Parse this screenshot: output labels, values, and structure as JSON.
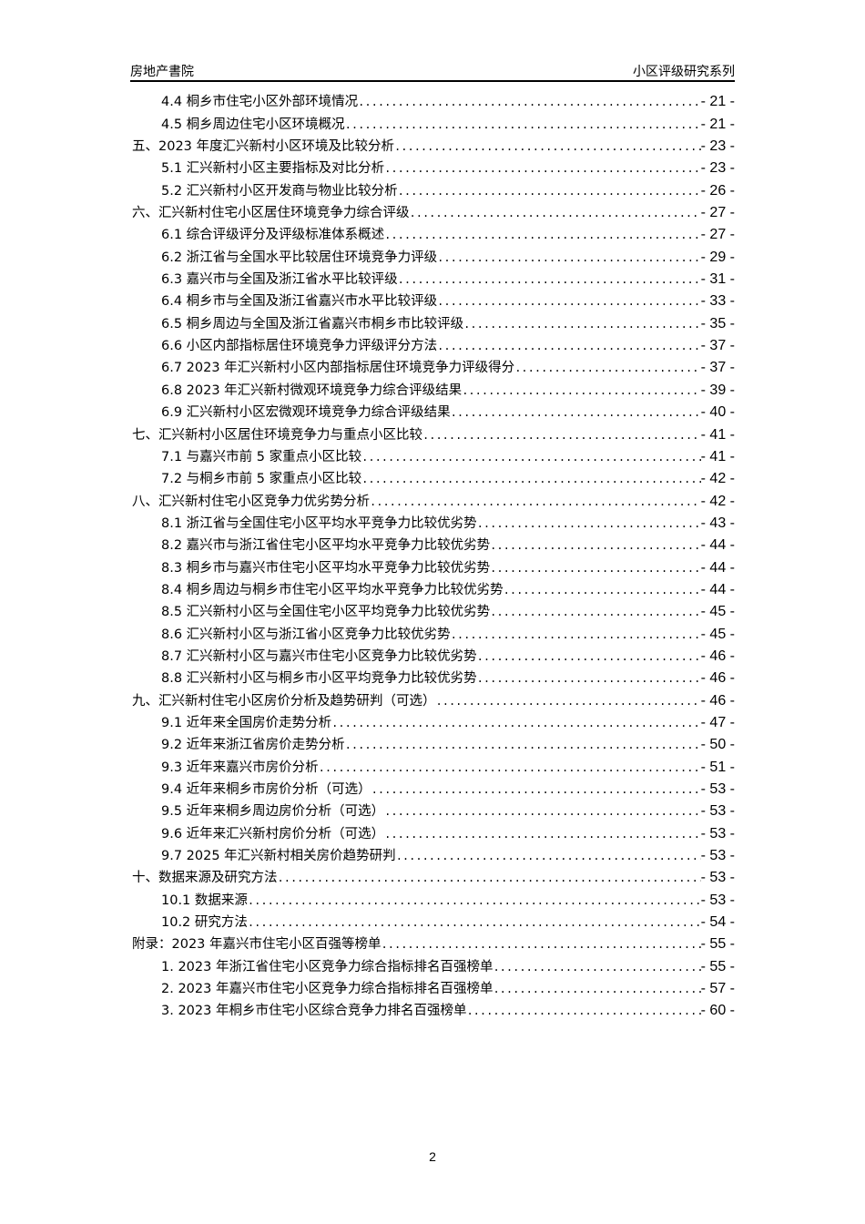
{
  "header": {
    "left": "房地产書院",
    "right": "小区评级研究系列"
  },
  "toc": [
    {
      "level": 2,
      "title": "4.4 桐乡市住宅小区外部环境情况",
      "page": "- 21 -"
    },
    {
      "level": 2,
      "title": "4.5 桐乡周边住宅小区环境概况",
      "page": "- 21 -"
    },
    {
      "level": 1,
      "title": "五、2023 年度汇兴新村小区环境及比较分析",
      "page": "- 23 -"
    },
    {
      "level": 2,
      "title": "5.1 汇兴新村小区主要指标及对比分析",
      "page": "- 23 -"
    },
    {
      "level": 2,
      "title": "5.2 汇兴新村小区开发商与物业比较分析",
      "page": "- 26 -"
    },
    {
      "level": 1,
      "title": "六、汇兴新村住宅小区居住环境竞争力综合评级",
      "page": "- 27 -"
    },
    {
      "level": 2,
      "title": "6.1 综合评级评分及评级标准体系概述",
      "page": "- 27 -"
    },
    {
      "level": 2,
      "title": "6.2 浙江省与全国水平比较居住环境竞争力评级",
      "page": "- 29 -"
    },
    {
      "level": 2,
      "title": "6.3 嘉兴市与全国及浙江省水平比较评级",
      "page": "- 31 -"
    },
    {
      "level": 2,
      "title": "6.4 桐乡市与全国及浙江省嘉兴市水平比较评级",
      "page": "- 33 -"
    },
    {
      "level": 2,
      "title": "6.5 桐乡周边与全国及浙江省嘉兴市桐乡市比较评级",
      "page": "- 35 -"
    },
    {
      "level": 2,
      "title": "6.6 小区内部指标居住环境竞争力评级评分方法",
      "page": "- 37 -"
    },
    {
      "level": 2,
      "title": "6.7 2023 年汇兴新村小区内部指标居住环境竞争力评级得分",
      "page": "- 37 -"
    },
    {
      "level": 2,
      "title": "6.8 2023 年汇兴新村微观环境竞争力综合评级结果",
      "page": "- 39 -"
    },
    {
      "level": 2,
      "title": "6.9 汇兴新村小区宏微观环境竞争力综合评级结果",
      "page": "- 40 -"
    },
    {
      "level": 1,
      "title": "七、汇兴新村小区居住环境竞争力与重点小区比较",
      "page": "- 41 -"
    },
    {
      "level": 2,
      "title": "7.1 与嘉兴市前 5 家重点小区比较",
      "page": "- 41 -"
    },
    {
      "level": 2,
      "title": "7.2 与桐乡市前 5 家重点小区比较",
      "page": "- 42 -"
    },
    {
      "level": 1,
      "title": "八、汇兴新村住宅小区竞争力优劣势分析",
      "page": "- 42 -"
    },
    {
      "level": 2,
      "title": "8.1 浙江省与全国住宅小区平均水平竞争力比较优劣势",
      "page": "- 43 -"
    },
    {
      "level": 2,
      "title": "8.2 嘉兴市与浙江省住宅小区平均水平竞争力比较优劣势",
      "page": "- 44 -"
    },
    {
      "level": 2,
      "title": "8.3 桐乡市与嘉兴市住宅小区平均水平竞争力比较优劣势",
      "page": "- 44 -"
    },
    {
      "level": 2,
      "title": "8.4 桐乡周边与桐乡市住宅小区平均水平竞争力比较优劣势",
      "page": "- 44 -"
    },
    {
      "level": 2,
      "title": "8.5 汇兴新村小区与全国住宅小区平均竞争力比较优劣势",
      "page": "- 45 -"
    },
    {
      "level": 2,
      "title": "8.6 汇兴新村小区与浙江省小区竞争力比较优劣势",
      "page": "- 45 -"
    },
    {
      "level": 2,
      "title": "8.7 汇兴新村小区与嘉兴市住宅小区竞争力比较优劣势",
      "page": "- 46 -"
    },
    {
      "level": 2,
      "title": "8.8 汇兴新村小区与桐乡市小区平均竞争力比较优劣势",
      "page": "- 46 -"
    },
    {
      "level": 1,
      "title": "九、汇兴新村住宅小区房价分析及趋势研判（可选）",
      "page": "- 46 -"
    },
    {
      "level": 2,
      "title": "9.1 近年来全国房价走势分析",
      "page": "- 47 -"
    },
    {
      "level": 2,
      "title": "9.2 近年来浙江省房价走势分析",
      "page": "- 50 -"
    },
    {
      "level": 2,
      "title": "9.3 近年来嘉兴市房价分析",
      "page": "- 51 -"
    },
    {
      "level": 2,
      "title": "9.4 近年来桐乡市房价分析（可选）",
      "page": "- 53 -"
    },
    {
      "level": 2,
      "title": "9.5 近年来桐乡周边房价分析（可选）",
      "page": "- 53 -"
    },
    {
      "level": 2,
      "title": "9.6 近年来汇兴新村房价分析（可选）",
      "page": "- 53 -"
    },
    {
      "level": 2,
      "title": "9.7 2025 年汇兴新村相关房价趋势研判",
      "page": "- 53 -"
    },
    {
      "level": 1,
      "title": "十、数据来源及研究方法",
      "page": "- 53 -"
    },
    {
      "level": 2,
      "title": "10.1 数据来源",
      "page": "- 53 -"
    },
    {
      "level": 2,
      "title": "10.2 研究方法",
      "page": "- 54 -"
    },
    {
      "level": 1,
      "title": "附录：2023 年嘉兴市住宅小区百强等榜单",
      "page": "- 55 -"
    },
    {
      "level": 2,
      "title": "1. 2023 年浙江省住宅小区竞争力综合指标排名百强榜单",
      "page": "- 55 -"
    },
    {
      "level": 2,
      "title": "2. 2023 年嘉兴市住宅小区竞争力综合指标排名百强榜单",
      "page": "- 57 -"
    },
    {
      "level": 2,
      "title": "3. 2023 年桐乡市住宅小区综合竞争力排名百强榜单",
      "page": "- 60 -"
    }
  ],
  "footer": {
    "page_number": "2"
  }
}
